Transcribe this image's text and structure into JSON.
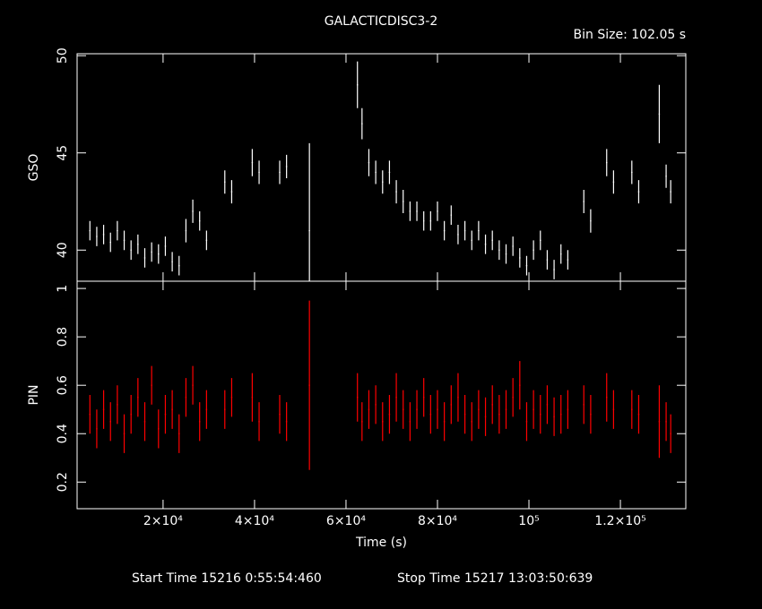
{
  "title": "GALACTICDISC3-2",
  "annotation": "Bin Size: 102.05 s",
  "footer": [
    "Start Time 15216  0:55:54:460",
    "Stop Time 15217 13:03:50:639"
  ],
  "chart_data": [
    {
      "type": "scatter",
      "ylabel": "GSO",
      "color": "#ffffff",
      "xlim": [
        1200,
        134300
      ],
      "xticks": [
        20000,
        40000,
        60000,
        80000,
        100000,
        120000
      ],
      "ylim": [
        38.4,
        50.1
      ],
      "yticks": [
        40,
        45,
        50
      ],
      "x": [
        4000,
        5500,
        7000,
        8500,
        10000,
        11500,
        13000,
        14500,
        16000,
        17500,
        19000,
        20500,
        22000,
        23500,
        25000,
        26500,
        28000,
        29500,
        33500,
        35000,
        39500,
        41000,
        45500,
        47000,
        52000,
        62500,
        63500,
        65000,
        66500,
        68000,
        69500,
        71000,
        72500,
        74000,
        75500,
        77000,
        78500,
        80000,
        81500,
        83000,
        84500,
        86000,
        87500,
        89000,
        90500,
        92000,
        93500,
        95000,
        96500,
        98000,
        99500,
        101000,
        102500,
        104000,
        105500,
        107000,
        108500,
        112000,
        113500,
        117000,
        118500,
        122500,
        124000,
        128500,
        130000,
        131000
      ],
      "values": [
        41.0,
        40.7,
        40.8,
        40.4,
        41.0,
        40.5,
        40.0,
        40.3,
        39.6,
        39.9,
        39.8,
        40.2,
        39.4,
        39.2,
        41.0,
        42.0,
        41.5,
        40.5,
        43.5,
        43.0,
        44.5,
        44.0,
        44.0,
        44.3,
        41.0,
        48.5,
        46.5,
        44.5,
        44.0,
        43.5,
        44.0,
        43.0,
        42.5,
        42.0,
        42.0,
        41.5,
        41.5,
        42.0,
        41.0,
        41.8,
        40.8,
        41.0,
        40.5,
        41.0,
        40.3,
        40.5,
        40.0,
        39.8,
        40.2,
        39.6,
        39.2,
        40.0,
        40.5,
        39.5,
        39.0,
        39.8,
        39.5,
        42.5,
        41.5,
        44.5,
        43.5,
        44.0,
        43.0,
        47.0,
        43.8,
        43.0
      ],
      "errors": [
        0.5,
        0.5,
        0.5,
        0.5,
        0.5,
        0.5,
        0.5,
        0.5,
        0.5,
        0.5,
        0.5,
        0.5,
        0.5,
        0.5,
        0.6,
        0.6,
        0.5,
        0.5,
        0.6,
        0.6,
        0.7,
        0.6,
        0.6,
        0.6,
        4.5,
        1.2,
        0.8,
        0.7,
        0.6,
        0.6,
        0.6,
        0.6,
        0.6,
        0.5,
        0.5,
        0.5,
        0.5,
        0.5,
        0.5,
        0.5,
        0.5,
        0.5,
        0.5,
        0.5,
        0.5,
        0.5,
        0.5,
        0.5,
        0.5,
        0.5,
        0.5,
        0.5,
        0.5,
        0.5,
        0.5,
        0.5,
        0.5,
        0.6,
        0.6,
        0.7,
        0.6,
        0.6,
        0.6,
        1.5,
        0.6,
        0.6
      ]
    },
    {
      "type": "scatter",
      "ylabel": "PIN",
      "xlabel": "Time (s)",
      "color": "#ff0000",
      "xlim": [
        1200,
        134300
      ],
      "xticks": [
        {
          "value": 20000,
          "label": "2×10⁴"
        },
        {
          "value": 40000,
          "label": "4×10⁴"
        },
        {
          "value": 60000,
          "label": "6×10⁴"
        },
        {
          "value": 80000,
          "label": "8×10⁴"
        },
        {
          "value": 100000,
          "label": "10⁵"
        },
        {
          "value": 120000,
          "label": "1.2×10⁵"
        }
      ],
      "ylim": [
        0.09,
        1.03
      ],
      "yticks": [
        0.2,
        0.4,
        0.6,
        0.8,
        1
      ],
      "x": [
        4000,
        5500,
        7000,
        8500,
        10000,
        11500,
        13000,
        14500,
        16000,
        17500,
        19000,
        20500,
        22000,
        23500,
        25000,
        26500,
        28000,
        29500,
        33500,
        35000,
        39500,
        41000,
        45500,
        47000,
        52000,
        62500,
        63500,
        65000,
        66500,
        68000,
        69500,
        71000,
        72500,
        74000,
        75500,
        77000,
        78500,
        80000,
        81500,
        83000,
        84500,
        86000,
        87500,
        89000,
        90500,
        92000,
        93500,
        95000,
        96500,
        98000,
        99500,
        101000,
        102500,
        104000,
        105500,
        107000,
        108500,
        112000,
        113500,
        117000,
        118500,
        122500,
        124000,
        128500,
        130000,
        131000
      ],
      "values": [
        0.48,
        0.42,
        0.5,
        0.45,
        0.52,
        0.4,
        0.48,
        0.55,
        0.45,
        0.6,
        0.42,
        0.48,
        0.5,
        0.4,
        0.55,
        0.6,
        0.45,
        0.5,
        0.5,
        0.55,
        0.55,
        0.45,
        0.48,
        0.45,
        0.6,
        0.55,
        0.45,
        0.5,
        0.52,
        0.45,
        0.48,
        0.55,
        0.5,
        0.45,
        0.5,
        0.55,
        0.48,
        0.5,
        0.45,
        0.52,
        0.55,
        0.48,
        0.45,
        0.5,
        0.47,
        0.52,
        0.48,
        0.5,
        0.55,
        0.6,
        0.45,
        0.5,
        0.48,
        0.52,
        0.47,
        0.48,
        0.5,
        0.52,
        0.48,
        0.55,
        0.5,
        0.5,
        0.48,
        0.45,
        0.45,
        0.4
      ],
      "errors": [
        0.08,
        0.08,
        0.08,
        0.08,
        0.08,
        0.08,
        0.08,
        0.08,
        0.08,
        0.08,
        0.08,
        0.08,
        0.08,
        0.08,
        0.08,
        0.08,
        0.08,
        0.08,
        0.08,
        0.08,
        0.1,
        0.08,
        0.08,
        0.08,
        0.35,
        0.1,
        0.08,
        0.08,
        0.08,
        0.08,
        0.08,
        0.1,
        0.08,
        0.08,
        0.08,
        0.08,
        0.08,
        0.08,
        0.08,
        0.08,
        0.1,
        0.08,
        0.08,
        0.08,
        0.08,
        0.08,
        0.08,
        0.08,
        0.08,
        0.1,
        0.08,
        0.08,
        0.08,
        0.08,
        0.08,
        0.08,
        0.08,
        0.08,
        0.08,
        0.1,
        0.08,
        0.08,
        0.08,
        0.15,
        0.08,
        0.08
      ]
    }
  ]
}
